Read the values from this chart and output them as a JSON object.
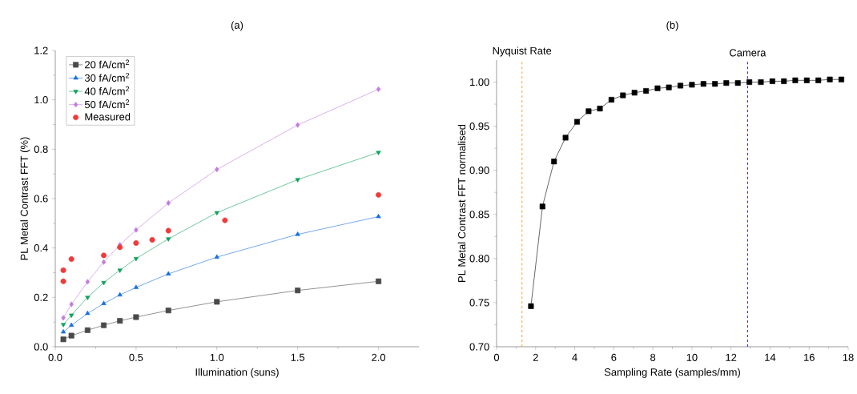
{
  "chart_data": [
    {
      "type": "line",
      "title": "(a)",
      "xlabel": "Illumination (suns)",
      "ylabel": "PL Metal Contrast FFT (%)",
      "xlim": [
        0,
        2.25
      ],
      "ylim": [
        0,
        1.2
      ],
      "xticks": [
        {
          "value": 0,
          "label": "0.0"
        },
        0.5,
        {
          "value": 1,
          "label": "1.0"
        },
        1.5,
        {
          "value": 2,
          "label": "2.0"
        }
      ],
      "yticks": [
        {
          "value": 0,
          "label": "0.0"
        },
        0.2,
        0.4,
        0.6,
        0.8,
        {
          "value": 1,
          "label": "1.0"
        },
        1.2
      ],
      "legend": "top left",
      "grid": false,
      "series": [
        {
          "name": "20 fA/cm$^{2}$",
          "color": "#4a4a4a",
          "marker": "square",
          "x": [
            0.05,
            0.1,
            0.2,
            0.3,
            0.4,
            0.5,
            0.7,
            1.0,
            1.5,
            2.0
          ],
          "values": [
            0.03,
            0.045,
            0.067,
            0.087,
            0.105,
            0.12,
            0.147,
            0.182,
            0.228,
            0.265
          ]
        },
        {
          "name": "30 fA/cm$^{2}$",
          "color": "#1a6fdf",
          "marker": "triangle",
          "x": [
            0.05,
            0.1,
            0.2,
            0.3,
            0.4,
            0.5,
            0.7,
            1.0,
            1.5,
            2.0
          ],
          "values": [
            0.06,
            0.087,
            0.135,
            0.175,
            0.21,
            0.24,
            0.295,
            0.363,
            0.455,
            0.527
          ]
        },
        {
          "name": "40 fA/cm$^{2}$",
          "color": "#0fa25a",
          "marker": "triangle-down",
          "x": [
            0.05,
            0.1,
            0.2,
            0.3,
            0.4,
            0.5,
            0.7,
            1.0,
            1.5,
            2.0
          ],
          "values": [
            0.09,
            0.128,
            0.2,
            0.26,
            0.31,
            0.357,
            0.437,
            0.543,
            0.677,
            0.787
          ]
        },
        {
          "name": "50 fA/cm$^{2}$",
          "color": "#c27ce0",
          "marker": "diamond",
          "x": [
            0.05,
            0.1,
            0.2,
            0.3,
            0.4,
            0.5,
            0.7,
            1.0,
            1.5,
            2.0
          ],
          "values": [
            0.117,
            0.172,
            0.263,
            0.343,
            0.413,
            0.473,
            0.582,
            0.718,
            0.898,
            1.043
          ]
        },
        {
          "name": "Measured",
          "color": "#f03a3a",
          "type": "scatter",
          "marker": "circle",
          "x": [
            0.05,
            0.05,
            0.1,
            0.3,
            0.4,
            0.5,
            0.6,
            0.7,
            1.05,
            2.0
          ],
          "values": [
            0.31,
            0.265,
            0.355,
            0.37,
            0.403,
            0.42,
            0.433,
            0.47,
            0.512,
            0.615
          ]
        }
      ]
    },
    {
      "type": "line",
      "title": "(b)",
      "xlabel": "Sampling Rate (samples/mm)",
      "ylabel": "PL Metal Contrast FFT normalised",
      "xlim": [
        0,
        18
      ],
      "ylim": [
        0.7,
        1.025
      ],
      "xticks": [
        0,
        2,
        4,
        6,
        8,
        10,
        12,
        14,
        16,
        18
      ],
      "yticks": [
        {
          "value": 0.7,
          "label": "0.70"
        },
        0.75,
        {
          "value": 0.8,
          "label": "0.80"
        },
        0.85,
        {
          "value": 0.9,
          "label": "0.90"
        },
        0.95,
        {
          "value": 1.0,
          "label": "1.00"
        }
      ],
      "grid": false,
      "legend": false,
      "ref_lines": [
        {
          "axis": "x",
          "value": 1.3,
          "label": "Nyquist Rate",
          "color": "#f5a623",
          "line_style": "dashed"
        },
        {
          "axis": "x",
          "value": 12.85,
          "label": "Camera",
          "color": "#1f1fbf",
          "line_style": "dashed"
        }
      ],
      "series": [
        {
          "color": "#000000",
          "marker": "square",
          "x": [
            1.76,
            2.35,
            2.94,
            3.53,
            4.12,
            4.71,
            5.29,
            5.88,
            6.47,
            7.06,
            7.65,
            8.24,
            8.82,
            9.41,
            10.0,
            10.59,
            11.18,
            11.76,
            12.35,
            12.94,
            13.53,
            14.12,
            14.71,
            15.29,
            15.88,
            16.47,
            17.06,
            17.65
          ],
          "values": [
            0.746,
            0.859,
            0.91,
            0.937,
            0.955,
            0.967,
            0.97,
            0.98,
            0.985,
            0.988,
            0.99,
            0.993,
            0.994,
            0.996,
            0.997,
            0.998,
            0.998,
            0.999,
            0.999,
            1.0,
            1.0,
            1.001,
            1.001,
            1.002,
            1.002,
            1.002,
            1.003,
            1.003
          ]
        }
      ]
    }
  ]
}
